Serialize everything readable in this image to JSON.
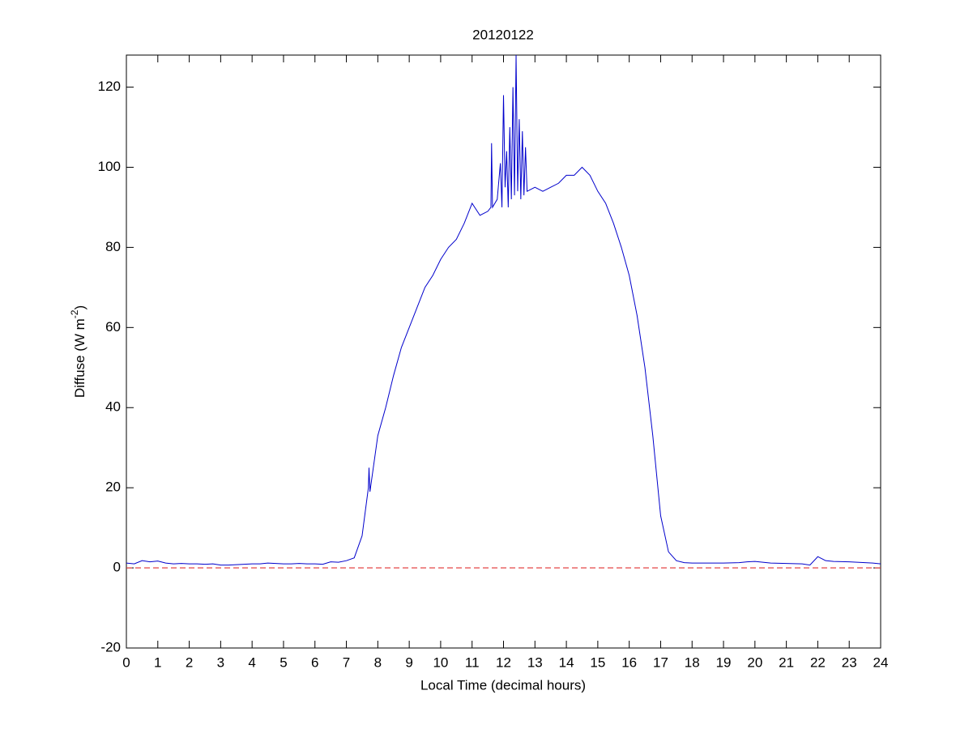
{
  "chart_data": {
    "type": "line",
    "title": "20120122",
    "xlabel": "Local Time (decimal hours)",
    "ylabel": {
      "text": "Diffuse (W m",
      "superscript": "-2",
      "suffix": ")"
    },
    "xlim": [
      0,
      24
    ],
    "xticks": [
      0,
      1,
      2,
      3,
      4,
      5,
      6,
      7,
      8,
      9,
      10,
      11,
      12,
      13,
      14,
      15,
      16,
      17,
      18,
      19,
      20,
      21,
      22,
      23,
      24
    ],
    "ylim": [
      -20,
      128
    ],
    "yticks": [
      -20,
      0,
      20,
      40,
      60,
      80,
      100,
      120
    ],
    "reference_line": {
      "value": 0,
      "color": "#e03030"
    },
    "series": [
      {
        "color": "#0000cc",
        "x": [
          0,
          0.25,
          0.5,
          0.75,
          1,
          1.25,
          1.5,
          1.75,
          2,
          2.25,
          2.5,
          2.75,
          3,
          3.25,
          3.5,
          3.75,
          4,
          4.25,
          4.5,
          4.75,
          5,
          5.25,
          5.5,
          5.75,
          6,
          6.25,
          6.5,
          6.75,
          7,
          7.25,
          7.5,
          7.7,
          7.72,
          7.75,
          8,
          8.25,
          8.5,
          8.75,
          9,
          9.25,
          9.5,
          9.75,
          10,
          10.25,
          10.5,
          10.75,
          11,
          11.25,
          11.5,
          11.6,
          11.62,
          11.65,
          11.8,
          11.9,
          11.95,
          12,
          12.05,
          12.1,
          12.15,
          12.2,
          12.25,
          12.3,
          12.35,
          12.4,
          12.45,
          12.5,
          12.55,
          12.6,
          12.65,
          12.7,
          12.75,
          13,
          13.25,
          13.5,
          13.75,
          14,
          14.25,
          14.5,
          14.75,
          15,
          15.25,
          15.5,
          15.75,
          16,
          16.25,
          16.5,
          16.75,
          17,
          17.25,
          17.5,
          17.75,
          18,
          18.5,
          19,
          19.5,
          19.75,
          20,
          20.5,
          21,
          21.5,
          21.75,
          22,
          22.25,
          22.5,
          23,
          23.5,
          23.75,
          24
        ],
        "values": [
          1.2,
          1.0,
          1.8,
          1.5,
          1.7,
          1.2,
          1.0,
          1.1,
          1.0,
          1.0,
          0.9,
          1.0,
          0.7,
          0.7,
          0.8,
          0.9,
          1.0,
          1.0,
          1.2,
          1.1,
          1.0,
          1.0,
          1.1,
          1.0,
          1.0,
          0.9,
          1.5,
          1.4,
          1.8,
          2.5,
          8,
          20,
          25,
          19,
          33,
          40,
          48,
          55,
          60,
          65,
          70,
          73,
          77,
          80,
          82,
          86,
          91,
          88,
          89,
          90,
          106,
          90,
          92,
          101,
          90,
          118,
          95,
          104,
          90,
          110,
          92,
          120,
          93,
          128,
          94,
          112,
          92,
          109,
          93,
          105,
          94,
          95,
          94,
          95,
          96,
          98,
          98,
          100,
          98,
          94,
          91,
          86,
          80,
          73,
          63,
          50,
          33,
          13,
          4,
          1.8,
          1.3,
          1.2,
          1.2,
          1.2,
          1.3,
          1.5,
          1.6,
          1.2,
          1.1,
          1.0,
          0.7,
          2.8,
          1.8,
          1.6,
          1.5,
          1.3,
          1.2,
          1.0
        ]
      }
    ]
  }
}
